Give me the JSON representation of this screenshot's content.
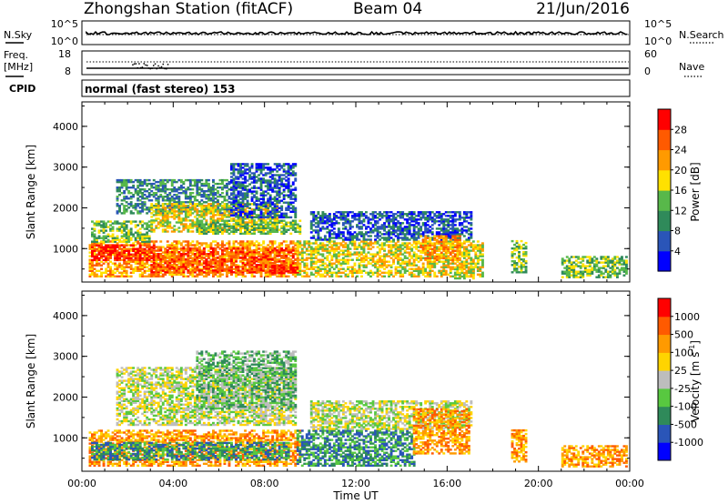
{
  "header": {
    "station": "Zhongshan Station (fitACF)",
    "beam": "Beam 04",
    "date": "21/Jun/2016"
  },
  "nsky_panel": {
    "left_label": "N.Sky",
    "right_label": "N.Search",
    "left_ticks": [
      "10^5",
      "10^0"
    ],
    "right_ticks": [
      "10^5",
      "10^0"
    ]
  },
  "freq_panel": {
    "left_label_top": "Freq.",
    "left_label_bottom": "[MHz]",
    "right_label": "Nave",
    "left_ticks": [
      "18",
      "8"
    ],
    "right_ticks": [
      "60",
      "0"
    ]
  },
  "cpid": {
    "label": "CPID",
    "value": "normal (fast stereo) 153"
  },
  "chart_data": [
    {
      "type": "heatmap",
      "name": "power",
      "ylabel": "Slant Range [km]",
      "ylim": [
        180,
        4600
      ],
      "yticks": [
        "1000",
        "2000",
        "3000",
        "4000"
      ],
      "colorbar_label": "Power [dB]",
      "colorbar_ticks": [
        "4",
        "8",
        "12",
        "16",
        "20",
        "24",
        "28"
      ],
      "colorbar_colors": [
        "#0000ff",
        "#2a55b8",
        "#2f8a5a",
        "#58b84a",
        "#ffe100",
        "#ff9a00",
        "#ff5a00",
        "#ff0000"
      ],
      "regions": [
        {
          "t0": 0.3,
          "t1": 9.5,
          "r0": 300,
          "r1": 1200,
          "level": 5
        },
        {
          "t0": 0.4,
          "t1": 3.2,
          "r0": 700,
          "r1": 1100,
          "level": 7
        },
        {
          "t0": 3.0,
          "t1": 9.3,
          "r0": 400,
          "r1": 1000,
          "level": 6
        },
        {
          "t0": 8.2,
          "t1": 9.4,
          "r0": 380,
          "r1": 600,
          "level": 7
        },
        {
          "t0": 0.4,
          "t1": 3.0,
          "r0": 1150,
          "r1": 1650,
          "level": 3
        },
        {
          "t0": 1.5,
          "t1": 6.8,
          "r0": 1850,
          "r1": 2700,
          "level": 2
        },
        {
          "t0": 3.0,
          "t1": 8.5,
          "r0": 1400,
          "r1": 2100,
          "level": 4
        },
        {
          "t0": 5.0,
          "t1": 9.5,
          "r0": 1350,
          "r1": 1700,
          "level": 3
        },
        {
          "t0": 6.5,
          "t1": 9.3,
          "r0": 1750,
          "r1": 3100,
          "level": 1
        },
        {
          "t0": 9.4,
          "t1": 17.5,
          "r0": 300,
          "r1": 1200,
          "level": 4
        },
        {
          "t0": 10.0,
          "t1": 17.0,
          "r0": 1200,
          "r1": 1900,
          "level": 1
        },
        {
          "t0": 14.8,
          "t1": 16.6,
          "r0": 700,
          "r1": 1300,
          "level": 5
        },
        {
          "t0": 16.3,
          "t1": 17.2,
          "r0": 250,
          "r1": 550,
          "level": 4
        },
        {
          "t0": 18.8,
          "t1": 19.5,
          "r0": 400,
          "r1": 1200,
          "level": 3
        },
        {
          "t0": 21.0,
          "t1": 23.9,
          "r0": 280,
          "r1": 800,
          "level": 3
        }
      ]
    },
    {
      "type": "heatmap",
      "name": "velocity",
      "ylabel": "Slant Range [km]",
      "ylim": [
        180,
        4600
      ],
      "yticks": [
        "1000",
        "2000",
        "3000",
        "4000"
      ],
      "xlabel": "Time UT",
      "xticks": [
        "00:00",
        "04:00",
        "08:00",
        "12:00",
        "16:00",
        "20:00",
        "00:00"
      ],
      "colorbar_label": "Velocity [m s^-1]",
      "colorbar_ticks": [
        "1000",
        "500",
        "100",
        "25",
        "-25",
        "-100",
        "-500",
        "-1000"
      ],
      "colorbar_colors": [
        "#0000ff",
        "#2a55b8",
        "#2f8a5a",
        "#58c840",
        "#bdbdbd",
        "#ffd400",
        "#ff9a00",
        "#ff5a00",
        "#ff0000"
      ],
      "regions": [
        {
          "t0": 0.3,
          "t1": 9.5,
          "r0": 300,
          "r1": 1200,
          "level": 6
        },
        {
          "t0": 0.4,
          "t1": 9.0,
          "r0": 450,
          "r1": 900,
          "level": 2
        },
        {
          "t0": 1.5,
          "t1": 9.3,
          "r0": 1300,
          "r1": 2700,
          "level": 4
        },
        {
          "t0": 5.0,
          "t1": 9.3,
          "r0": 1700,
          "r1": 3100,
          "level": 3
        },
        {
          "t0": 9.4,
          "t1": 14.5,
          "r0": 300,
          "r1": 1200,
          "level": 2
        },
        {
          "t0": 10.0,
          "t1": 17.0,
          "r0": 1200,
          "r1": 1900,
          "level": 4
        },
        {
          "t0": 14.5,
          "t1": 17.0,
          "r0": 600,
          "r1": 1700,
          "level": 6
        },
        {
          "t0": 18.8,
          "t1": 19.5,
          "r0": 400,
          "r1": 1200,
          "level": 6
        },
        {
          "t0": 21.0,
          "t1": 23.9,
          "r0": 280,
          "r1": 800,
          "level": 6
        }
      ]
    }
  ]
}
